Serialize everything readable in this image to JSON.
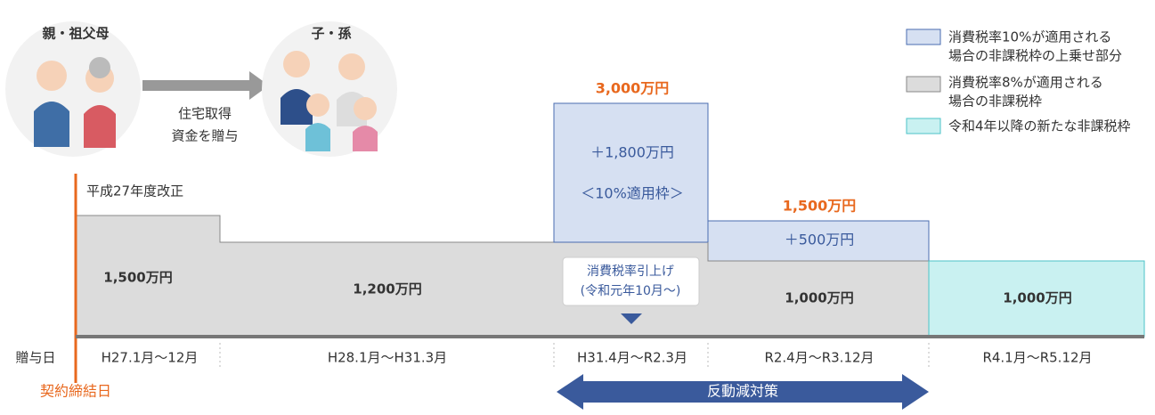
{
  "header": {
    "giver": "親・祖父母",
    "receiver": "子・孫",
    "arrow_label": [
      "住宅取得",
      "資金を贈与"
    ]
  },
  "legend": [
    {
      "lines": [
        "消費税率10%が適用される",
        "場合の非課税枠の上乗せ部分"
      ]
    },
    {
      "lines": [
        "消費税率8%が適用される",
        "場合の非課税枠"
      ]
    },
    {
      "lines": [
        "令和4年以降の新たな非課税枠"
      ]
    }
  ],
  "reform_label": "平成27年度改正",
  "periods": [
    {
      "date": "H27.1月～12月",
      "base": "1,500万円"
    },
    {
      "date": "H28.1月～H31.3月",
      "base": "1,200万円"
    },
    {
      "date": "H31.4月～R2.3月",
      "total": "3,000万円",
      "extra": "＋1,800万円",
      "extra_note": "＜10%適用枠＞"
    },
    {
      "date": "R2.4月～R3.12月",
      "base": "1,000万円",
      "total": "1,500万円",
      "extra": "＋500万円"
    },
    {
      "date": "R4.1月～R5.12月",
      "base": "1,000万円"
    }
  ],
  "callout": [
    "消費税率引上げ",
    "(令和元年10月～)"
  ],
  "axis_label": "贈与日",
  "contract_label": "契約締結日",
  "arrow_band": "反動減対策"
}
